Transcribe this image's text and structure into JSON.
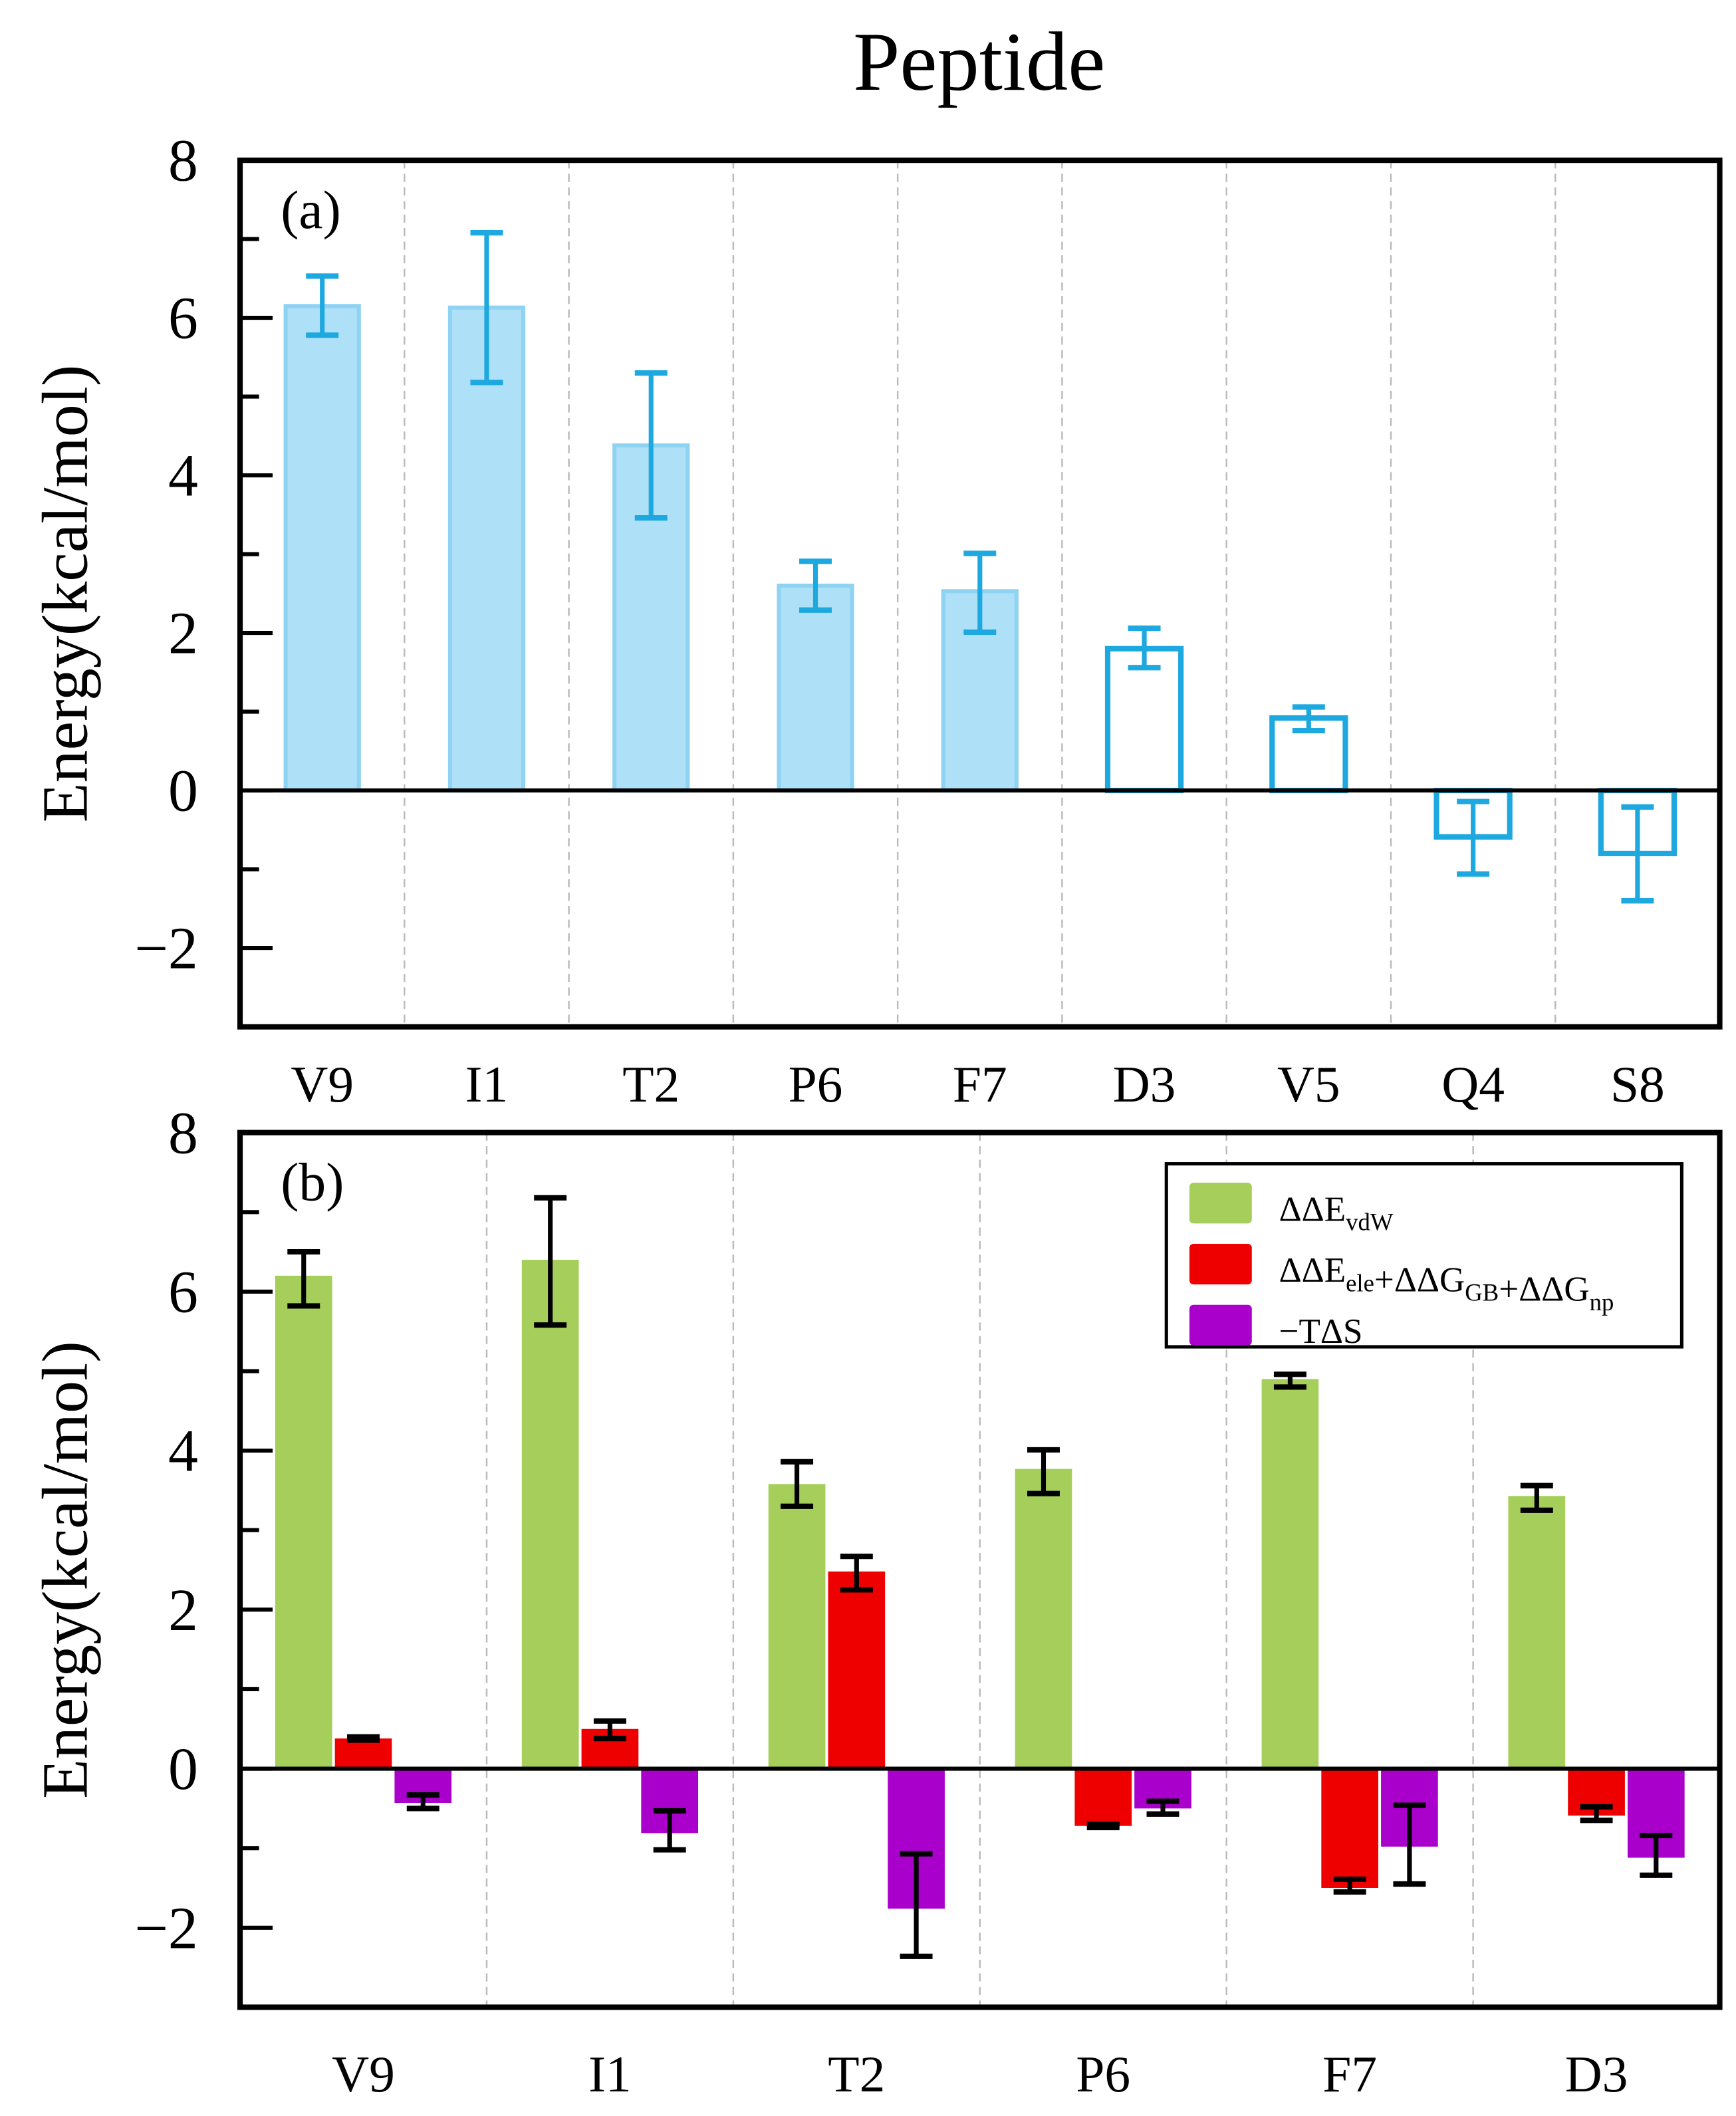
{
  "title": "Peptide",
  "colors": {
    "blue": "#1EA8E0",
    "blue_fill": "#AEE0F8",
    "green": "#A6CE5A",
    "red": "#EE0000",
    "purple": "#AA00CC",
    "axis": "#000000",
    "grid": "#BBBBBB"
  },
  "chart_data": [
    {
      "type": "bar",
      "panel_label": "(a)",
      "ylabel": "Energy(kcal/mol)",
      "ylim": [
        -3,
        8
      ],
      "yticks": [
        -2,
        0,
        2,
        4,
        6,
        8
      ],
      "ytick_labels": [
        "−2",
        "0",
        "2",
        "4",
        "6",
        "8"
      ],
      "categories": [
        "V9",
        "I1",
        "T2",
        "P6",
        "F7",
        "D3",
        "V5",
        "Q4",
        "S8"
      ],
      "values": [
        6.15,
        6.13,
        4.38,
        2.6,
        2.53,
        1.8,
        0.92,
        -0.59,
        -0.8
      ],
      "err_high": [
        6.53,
        7.08,
        5.3,
        2.91,
        3.01,
        2.06,
        1.06,
        -0.14,
        -0.21
      ],
      "err_low": [
        5.78,
        5.18,
        3.46,
        2.29,
        2.01,
        1.56,
        0.76,
        -1.06,
        -1.4
      ],
      "filled": [
        true,
        true,
        true,
        true,
        true,
        false,
        false,
        false,
        false
      ]
    },
    {
      "type": "bar",
      "panel_label": "(b)",
      "ylabel": "Energy(kcal/mol)",
      "ylim": [
        -3,
        8
      ],
      "yticks": [
        -2,
        0,
        2,
        4,
        6,
        8
      ],
      "ytick_labels": [
        "−2",
        "0",
        "2",
        "4",
        "6",
        "8"
      ],
      "categories": [
        "V9",
        "I1",
        "T2",
        "P6",
        "F7",
        "D3"
      ],
      "legend_position": "top-right",
      "series": [
        {
          "name": "ΔΔE",
          "sub": "vdW",
          "legend_parts": [
            [
              "ΔΔE",
              "vdW"
            ]
          ],
          "color_key": "green",
          "values": [
            6.2,
            6.4,
            3.58,
            3.77,
            4.9,
            3.43
          ],
          "err_high": [
            6.5,
            7.18,
            3.86,
            4.01,
            4.96,
            3.56
          ],
          "err_low": [
            5.82,
            5.58,
            3.3,
            3.46,
            4.8,
            3.25
          ]
        },
        {
          "name": "ΔΔEele+ΔΔGGB+ΔΔGnp",
          "legend_parts": [
            [
              "ΔΔE",
              "ele"
            ],
            [
              "+ΔΔG",
              "GB"
            ],
            [
              "+ΔΔG",
              "np"
            ]
          ],
          "color_key": "red",
          "values": [
            0.38,
            0.5,
            2.48,
            -0.72,
            -1.5,
            -0.59
          ],
          "err_high": [
            0.4,
            0.6,
            2.67,
            -0.7,
            -1.39,
            -0.48
          ],
          "err_low": [
            0.36,
            0.38,
            2.25,
            -0.74,
            -1.55,
            -0.65
          ]
        },
        {
          "name": "−TΔS",
          "legend_parts": [
            [
              "−TΔS",
              ""
            ]
          ],
          "color_key": "purple",
          "values": [
            -0.43,
            -0.81,
            -1.76,
            -0.5,
            -0.98,
            -1.12
          ],
          "err_high": [
            -0.33,
            -0.53,
            -1.07,
            -0.41,
            -0.46,
            -0.84
          ],
          "err_low": [
            -0.5,
            -1.02,
            -2.36,
            -0.57,
            -1.45,
            -1.34
          ]
        }
      ]
    }
  ]
}
